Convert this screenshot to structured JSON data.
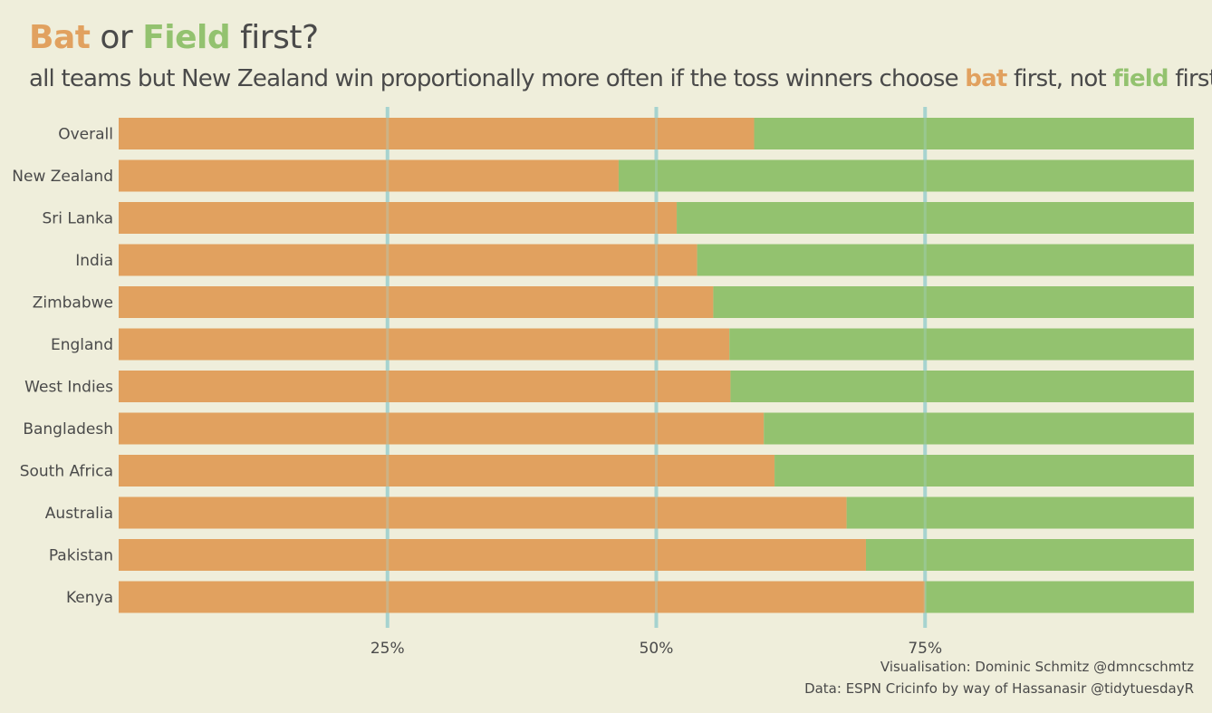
{
  "title": {
    "bat": "Bat",
    "or": "or",
    "field": "Field",
    "rest": "first?"
  },
  "subtitle": {
    "part1": "all teams but New Zealand win proportionally more often if the toss winners choose",
    "bat": "bat",
    "part2": "first, not",
    "field": "field",
    "part3": "first"
  },
  "caption": {
    "line1": "Visualisation: Dominic Schmitz @dmncschmtz",
    "line2": "Data: ESPN Cricinfo by way of Hassanasir @tidytuesdayR"
  },
  "colors": {
    "bat": "#e1a15f",
    "field": "#93c26f",
    "grid": "#a6d3cf",
    "background": "#efeedb",
    "text": "#4a4a4a"
  },
  "chart_data": {
    "type": "bar",
    "orientation": "horizontal",
    "stacked": true,
    "categories": [
      "Overall",
      "New Zealand",
      "Sri Lanka",
      "India",
      "Zimbabwe",
      "England",
      "West Indies",
      "Bangladesh",
      "South Africa",
      "Australia",
      "Pakistan",
      "Kenya"
    ],
    "series": [
      {
        "name": "bat",
        "values": [
          59.1,
          46.5,
          51.9,
          53.8,
          55.3,
          56.8,
          56.9,
          60.0,
          61.0,
          67.7,
          69.5,
          75.0
        ]
      },
      {
        "name": "field",
        "values": [
          40.9,
          53.5,
          48.1,
          46.2,
          44.7,
          43.2,
          43.1,
          40.0,
          39.0,
          32.3,
          30.5,
          25.0
        ]
      }
    ],
    "xlim": [
      0,
      100
    ],
    "xticks": [
      25,
      50,
      75
    ],
    "xtick_labels": [
      "25%",
      "50%",
      "75%"
    ],
    "grid": "vertical major lines"
  }
}
